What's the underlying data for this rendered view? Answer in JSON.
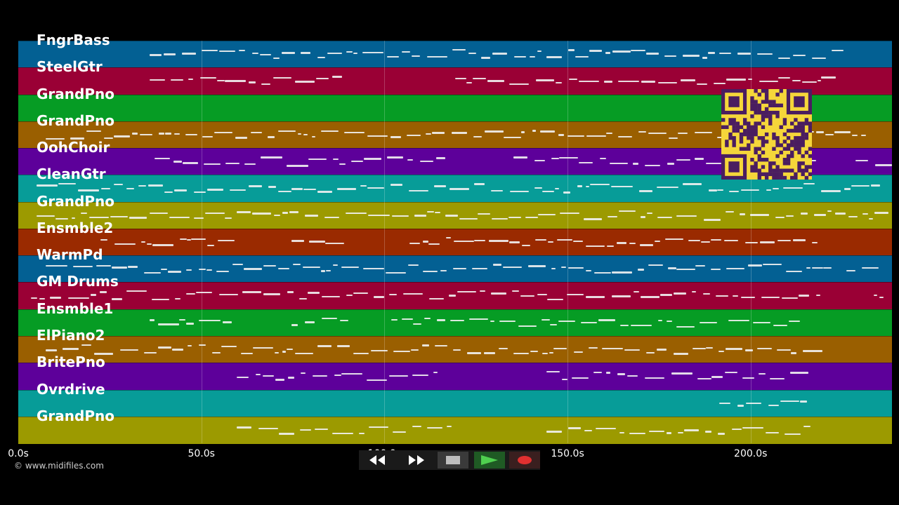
{
  "tracks": [
    {
      "name": "FngrBass",
      "color": "#036093"
    },
    {
      "name": "SteelGtr",
      "color": "#9a0035"
    },
    {
      "name": "GrandPno",
      "color": "#069c24"
    },
    {
      "name": "GrandPno",
      "color": "#9a5f00"
    },
    {
      "name": "OohChoir",
      "color": "#5d009a"
    },
    {
      "name": "CleanGtr",
      "color": "#079c98"
    },
    {
      "name": "GrandPno",
      "color": "#9c9a00"
    },
    {
      "name": "Ensmble2",
      "color": "#9a2a00"
    },
    {
      "name": "WarmPd",
      "color": "#036093"
    },
    {
      "name": "GM Drums",
      "color": "#9a0035"
    },
    {
      "name": "Ensmble1",
      "color": "#069c24"
    },
    {
      "name": "ElPiano2",
      "color": "#9a5f00"
    },
    {
      "name": "BritePno",
      "color": "#5d009a"
    },
    {
      "name": "Ovrdrive",
      "color": "#079c98"
    },
    {
      "name": "GrandPno",
      "color": "#9c9a00"
    }
  ],
  "timeline": {
    "ticks": [
      "0.0s",
      "50.0s",
      "100.0s",
      "150.0s",
      "200.0s"
    ],
    "tick_seconds": [
      0,
      50,
      100,
      150,
      200
    ],
    "duration_seconds": 238.6
  },
  "copyright": "© www.midifiles.com",
  "controls": [
    {
      "name": "rewind-button",
      "icon": "rewind-icon",
      "color": "#1f1f1f"
    },
    {
      "name": "fast-forward-button",
      "icon": "fast-forward-icon",
      "color": "#1f1f1f"
    },
    {
      "name": "stop-button",
      "icon": "stop-icon",
      "color": "#3a3a3a"
    },
    {
      "name": "play-button",
      "icon": "play-icon",
      "color": "#1f5a24"
    },
    {
      "name": "record-button",
      "icon": "record-icon",
      "color": "#3a1f1f"
    }
  ],
  "qr_color": "#f5d63a"
}
